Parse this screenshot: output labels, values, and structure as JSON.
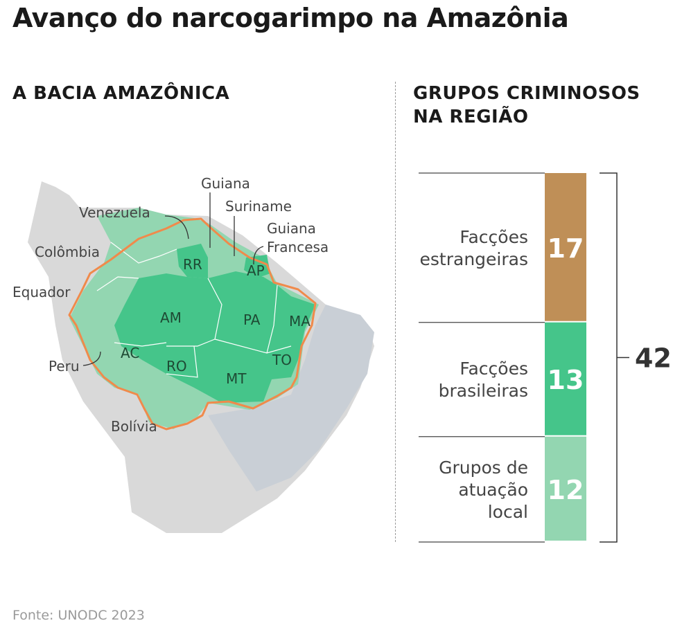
{
  "title": "Avanço do narcogarimpo na Amazônia",
  "map": {
    "heading": "A BACIA AMAZÔNICA",
    "countries": {
      "guiana": "Guiana",
      "venezuela": "Venezuela",
      "suriname": "Suriname",
      "guiana_francesa_1": "Guiana",
      "guiana_francesa_2": "Francesa",
      "colombia": "Colômbia",
      "equador": "Equador",
      "peru": "Peru",
      "bolivia": "Bolívia"
    },
    "states": {
      "rr": "RR",
      "ap": "AP",
      "am": "AM",
      "pa": "PA",
      "ma": "MA",
      "ac": "AC",
      "ro": "RO",
      "mt": "MT",
      "to": "TO"
    },
    "colors": {
      "state_dark": "#45c58a",
      "basin_light": "#93d6b1",
      "other_brazil": "#c9cfd6",
      "outside": "#d9d9d9",
      "basin_border": "#f08a4b"
    }
  },
  "groups": {
    "heading_line1": "GRUPOS CRIMINOSOS",
    "heading_line2": "NA REGIÃO"
  },
  "chart_data": {
    "type": "bar",
    "stacked": true,
    "categories": [
      "Facções estrangeiras",
      "Facções brasileiras",
      "Grupos de atuação local"
    ],
    "label_lines": [
      [
        "Facções",
        "estrangeiras"
      ],
      [
        "Facções",
        "brasileiras"
      ],
      [
        "Grupos de",
        "atuação",
        "local"
      ]
    ],
    "values": [
      17,
      13,
      12
    ],
    "colors": [
      "#bf8f57",
      "#45c58a",
      "#93d6b1"
    ],
    "total": 42
  },
  "source": "Fonte: UNODC 2023"
}
